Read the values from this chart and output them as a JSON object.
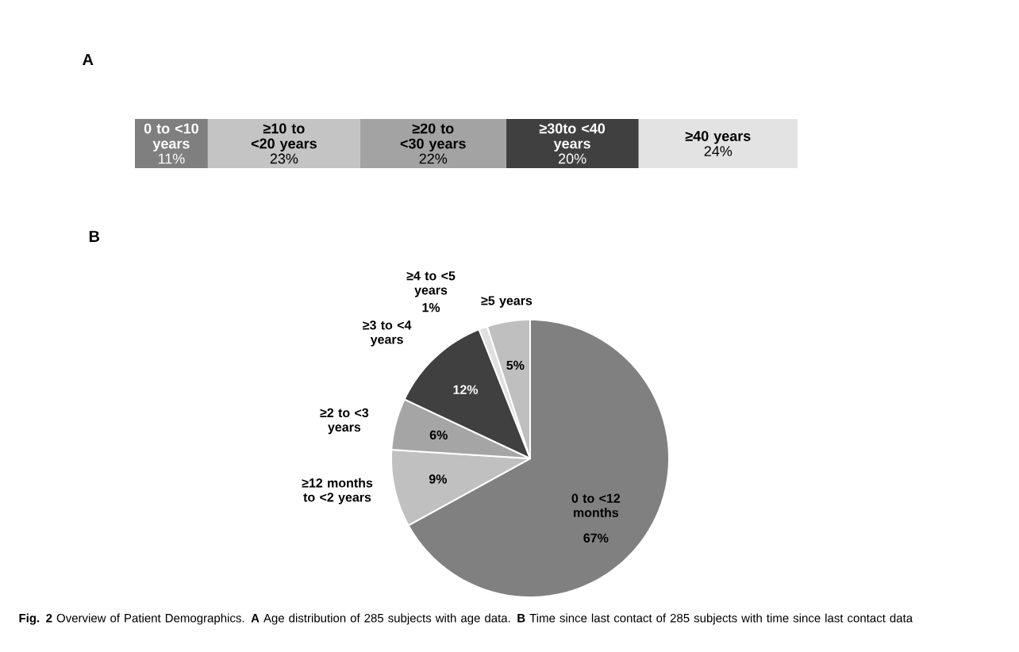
{
  "chart_data": [
    {
      "type": "bar",
      "title": "A",
      "orientation": "horizontal",
      "stacked": true,
      "categories": [
        null
      ],
      "series": [
        {
          "name": "0 to <10 years",
          "color": "#7f7f7f",
          "values": [
            11
          ],
          "value_labels": [
            "11%"
          ]
        },
        {
          "name": "≥10 to <20 years",
          "color": "#c4c4c4",
          "values": [
            23
          ],
          "value_labels": [
            "23%"
          ]
        },
        {
          "name": "≥20 to <30 years",
          "color": "#a3a3a3",
          "values": [
            22
          ],
          "value_labels": [
            "22%"
          ]
        },
        {
          "name": "≥30to <40 years",
          "color": "#404040",
          "values": [
            20
          ],
          "value_labels": [
            "20%"
          ]
        },
        {
          "name": "≥40 years",
          "color": "#e3e3e3",
          "values": [
            24
          ],
          "value_labels": [
            "24%"
          ]
        }
      ]
    },
    {
      "type": "pie",
      "title": "B",
      "categories": [
        "0 to <12 months",
        "≥12 months to <2 years",
        "≥2 to <3 years",
        "≥3 to <4 years",
        "≥4 to <5 years",
        "≥5 years"
      ],
      "values": [
        67,
        9,
        6,
        12,
        1,
        5
      ],
      "value_labels": [
        "67%",
        "9%",
        "6%",
        "12%",
        "1%",
        "5%"
      ],
      "colors": [
        "#808080",
        "#c0c0c0",
        "#a5a5a5",
        "#404040",
        "#e0e0e0",
        "#bfbfbf"
      ],
      "annotations": [
        "**Fig. 2** Overview of Patient Demographics. **A** Age distribution of 285 subjects with age data. **B** Time since last contact of 285 subjects with time since last contact data"
      ]
    }
  ]
}
